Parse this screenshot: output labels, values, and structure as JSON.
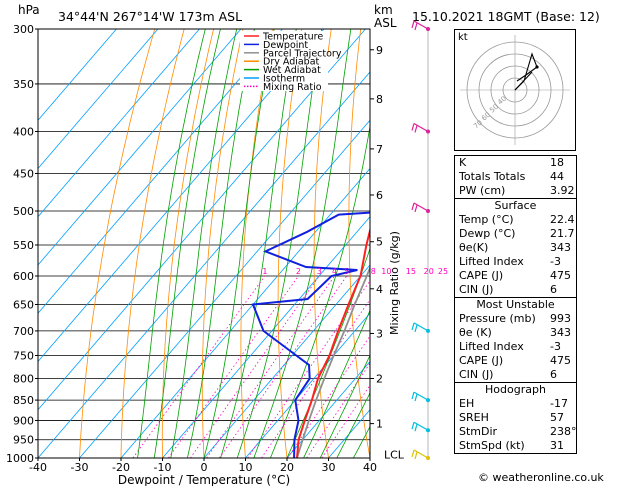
{
  "header": {
    "hpa_label": "hPa",
    "location": "34°44'N  267°14'W  173m  ASL",
    "km_label": "km",
    "asl_label": "ASL",
    "datetime": "15.10.2021  18GMT  (Base: 12)"
  },
  "chart_data": {
    "type": "skew-t",
    "xlabel": "Dewpoint / Temperature (°C)",
    "ylabel_right": "Mixing Ratio (g/kg)",
    "x_ticks": [
      -40,
      -30,
      -20,
      -10,
      0,
      10,
      20,
      30,
      40
    ],
    "pressure_ticks": [
      300,
      350,
      400,
      450,
      500,
      550,
      600,
      650,
      700,
      750,
      800,
      850,
      900,
      950,
      1000
    ],
    "km_ticks": [
      {
        "km": "1",
        "p": 908
      },
      {
        "km": "2",
        "p": 800
      },
      {
        "km": "3",
        "p": 705
      },
      {
        "km": "4",
        "p": 622
      },
      {
        "km": "5",
        "p": 545
      },
      {
        "km": "6",
        "p": 478
      },
      {
        "km": "7",
        "p": 420
      },
      {
        "km": "8",
        "p": 365
      },
      {
        "km": "9",
        "p": 318
      }
    ],
    "lcl_label": "LCL",
    "lcl_p": 990,
    "mixing_ratio_labels": [
      "1",
      "2",
      "3",
      "4",
      "5",
      "8",
      "10",
      "15",
      "20",
      "25"
    ],
    "mixing_ratio_values": [
      1,
      2,
      3,
      4,
      5,
      8,
      10,
      15,
      20,
      25
    ],
    "legend": [
      {
        "name": "Temperature",
        "color": "#ff2020"
      },
      {
        "name": "Dewpoint",
        "color": "#1020e0"
      },
      {
        "name": "Parcel Trajectory",
        "color": "#909090"
      },
      {
        "name": "Dry Adiabat",
        "color": "#ff8c00"
      },
      {
        "name": "Wet Adiabat",
        "color": "#00a000"
      },
      {
        "name": "Isotherm",
        "color": "#00a0ff"
      },
      {
        "name": "Mixing Ratio",
        "color": "#ff00c0"
      }
    ],
    "temperature": [
      [
        1000,
        22.4
      ],
      [
        950,
        19
      ],
      [
        900,
        16.5
      ],
      [
        850,
        14
      ],
      [
        800,
        11
      ],
      [
        750,
        9
      ],
      [
        700,
        6
      ],
      [
        650,
        3
      ],
      [
        600,
        0
      ],
      [
        550,
        -5
      ],
      [
        500,
        -10
      ],
      [
        480,
        -10.5
      ],
      [
        450,
        -13
      ],
      [
        400,
        -20
      ],
      [
        350,
        -27
      ],
      [
        300,
        -36
      ]
    ],
    "dewpoint": [
      [
        1000,
        21.7
      ],
      [
        950,
        18
      ],
      [
        900,
        15
      ],
      [
        850,
        10
      ],
      [
        800,
        9
      ],
      [
        770,
        6
      ],
      [
        750,
        1
      ],
      [
        700,
        -12
      ],
      [
        650,
        -20
      ],
      [
        640,
        -8
      ],
      [
        600,
        -7
      ],
      [
        590,
        -2
      ],
      [
        585,
        -15
      ],
      [
        560,
        -28
      ],
      [
        530,
        -22
      ],
      [
        505,
        -18
      ],
      [
        500,
        -5
      ],
      [
        480,
        -10
      ],
      [
        450,
        -13
      ],
      [
        400,
        -20
      ],
      [
        350,
        -28
      ],
      [
        300,
        -38
      ]
    ],
    "parcel": [
      [
        1000,
        22.4
      ],
      [
        950,
        20
      ],
      [
        900,
        17.5
      ],
      [
        850,
        15
      ],
      [
        800,
        12.5
      ],
      [
        750,
        10
      ],
      [
        700,
        7.5
      ],
      [
        650,
        4.5
      ],
      [
        600,
        1.5
      ],
      [
        550,
        -2
      ],
      [
        500,
        -6
      ],
      [
        450,
        -10
      ],
      [
        400,
        -16
      ],
      [
        350,
        -24
      ],
      [
        300,
        -33
      ]
    ]
  },
  "hodograph": {
    "unit_label": "kt",
    "ring_labels": [
      "70",
      "60",
      "50",
      "40"
    ]
  },
  "stats": {
    "k_label": "K",
    "k_value": "18",
    "tt_label": "Totals Totals",
    "tt_value": "44",
    "pw_label": "PW (cm)",
    "pw_value": "3.92"
  },
  "surface": {
    "title": "Surface",
    "rows": [
      {
        "label": "Temp (°C)",
        "value": "22.4"
      },
      {
        "label": "Dewp (°C)",
        "value": "21.7"
      },
      {
        "label": "θe(K)",
        "value": "343"
      },
      {
        "label": "Lifted Index",
        "value": "-3"
      },
      {
        "label": "CAPE (J)",
        "value": "475"
      },
      {
        "label": "CIN (J)",
        "value": "6"
      }
    ]
  },
  "most_unstable": {
    "title": "Most Unstable",
    "rows": [
      {
        "label": "Pressure (mb)",
        "value": "993"
      },
      {
        "label": "θe (K)",
        "value": "343"
      },
      {
        "label": "Lifted Index",
        "value": "-3"
      },
      {
        "label": "CAPE (J)",
        "value": "475"
      },
      {
        "label": "CIN (J)",
        "value": "6"
      }
    ]
  },
  "hodograph_stats": {
    "title": "Hodograph",
    "rows": [
      {
        "label": "EH",
        "value": "-17"
      },
      {
        "label": "SREH",
        "value": "57"
      },
      {
        "label": "StmDir",
        "value": "238°"
      },
      {
        "label": "StmSpd (kt)",
        "value": "31"
      }
    ]
  },
  "footer": {
    "credit": "© weatheronline.co.uk"
  },
  "colors": {
    "temperature": "#ff2020",
    "dewpoint": "#1020e0",
    "parcel": "#909090",
    "dry": "#ff8c00",
    "wet": "#00a000",
    "isotherm": "#00a0ff",
    "mixing": "#ff00c0",
    "wind": "#00c0e0"
  }
}
